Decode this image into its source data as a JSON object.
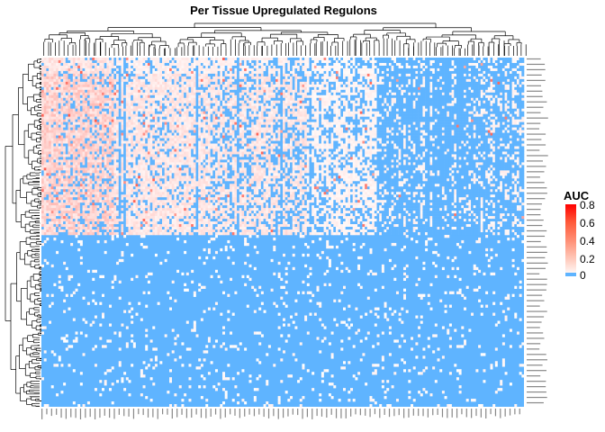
{
  "title": "Per Tissue Upregulated Regulons",
  "colors": {
    "zero": "#5fb4ff",
    "low": "#ffffff",
    "high": "#ff0000"
  },
  "legend": {
    "title": "AUC",
    "ticks": [
      "0.8",
      "0.6",
      "0.4",
      "0.2",
      "0"
    ]
  },
  "chart_data": {
    "type": "heatmap",
    "title": "Per Tissue Upregulated Regulons",
    "value_name": "AUC",
    "color_range": [
      0,
      0.85
    ],
    "legend_ticks": [
      0,
      0.2,
      0.4,
      0.6,
      0.8
    ],
    "row_clusters": [
      {
        "position": "top",
        "row_fraction": 0.51,
        "typical_auc": [
          0.05,
          0.25
        ],
        "high_on_left_columns": 0.3
      },
      {
        "position": "bottom",
        "row_fraction": 0.49,
        "typical_auc": [
          0,
          0.05
        ]
      }
    ],
    "dendrograms": [
      "rows-left",
      "columns-top"
    ],
    "row_labels_visible_as_tiny_text": true,
    "column_labels_visible_as_tiny_text": true,
    "legend_position": "right"
  }
}
